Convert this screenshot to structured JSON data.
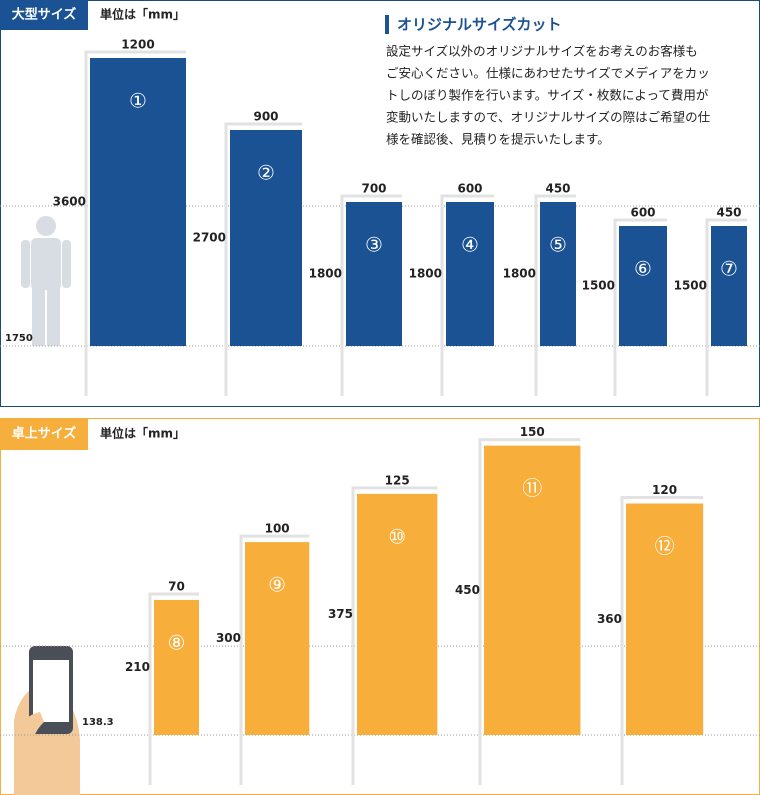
{
  "large": {
    "label": "大型サイズ",
    "unit": "単位は「mm」",
    "reference": 1750,
    "items": [
      {
        "no": "①",
        "width": 1200,
        "height": 3600
      },
      {
        "no": "②",
        "width": 900,
        "height": 2700
      },
      {
        "no": "③",
        "width": 700,
        "height": 1800
      },
      {
        "no": "④",
        "width": 600,
        "height": 1800
      },
      {
        "no": "⑤",
        "width": 450,
        "height": 1800
      },
      {
        "no": "⑥",
        "width": 600,
        "height": 1500
      },
      {
        "no": "⑦",
        "width": 450,
        "height": 1500
      }
    ]
  },
  "custom": {
    "title": "オリジナルサイズカット",
    "lines": [
      "設定サイズ以外のオリジナルサイズをお考えのお客様も",
      "ご安心ください。仕様にあわせたサイズでメディアをカッ",
      "トしのぼり製作を行います。サイズ・枚数によって費用が",
      "変動いたしますので、オリジナルサイズの際はご希望の仕",
      "様を確認後、見積りを提示いたします。"
    ]
  },
  "desktop": {
    "label": "卓上サイズ",
    "unit": "単位は「mm」",
    "reference": 138.3,
    "items": [
      {
        "no": "⑧",
        "width": 70,
        "height": 210
      },
      {
        "no": "⑨",
        "width": 100,
        "height": 300
      },
      {
        "no": "⑩",
        "width": 125,
        "height": 375
      },
      {
        "no": "⑪",
        "width": 150,
        "height": 450
      },
      {
        "no": "⑫",
        "width": 120,
        "height": 360
      }
    ]
  }
}
